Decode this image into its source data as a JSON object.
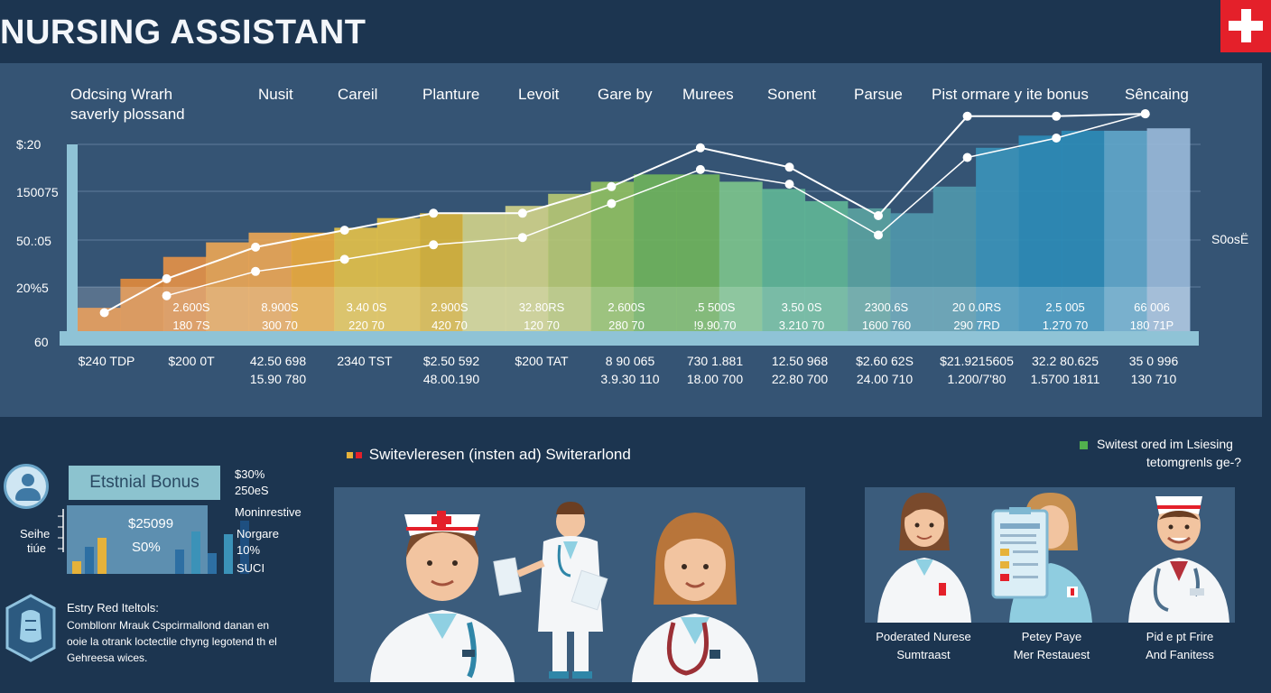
{
  "header": {
    "title": "NURSING ASSISTANT"
  },
  "colors": {
    "background": "#1c3550",
    "panel": "#355474",
    "flag_red": "#e4202a",
    "bar_colors": [
      "#e08a3c",
      "#e39148",
      "#e9a656",
      "#eaaa3e",
      "#e2c04a",
      "#d8b43c",
      "#cfd18a",
      "#b6c874",
      "#8fbf62",
      "#6fb35c",
      "#7cc38c",
      "#5fb596",
      "#5aa2a0",
      "#4f97ab",
      "#3b92b8",
      "#2d8bb6",
      "#5fa6c9",
      "#98b8d8"
    ]
  },
  "chart_data": {
    "type": "bar",
    "categories_header": [
      "Odcsing Wrarh",
      "Nusit",
      "Careil",
      "Planture",
      "Levoit",
      "Gare by",
      "Murees",
      "Sonent",
      "Parsue",
      "Pist ormare y ite bonus",
      "Sêncaing"
    ],
    "subheader": "saverly plossand",
    "y_tick_labels": [
      "$:20",
      "150075",
      "50.:05",
      "20%5",
      "60"
    ],
    "right_label": "S0osË",
    "values": [
      0.5,
      1.1,
      1.55,
      1.85,
      2.05,
      2.05,
      2.15,
      2.35,
      2.45,
      2.45,
      2.6,
      2.85,
      3.1,
      3.25,
      3.25,
      3.1,
      2.95,
      2.7,
      2.55,
      2.45,
      3.0,
      3.8,
      4.05,
      4.15,
      4.15,
      4.2
    ],
    "line_upper": [
      {
        "x": 0.3,
        "y": 0.4
      },
      {
        "x": 1.0,
        "y": 1.1
      },
      {
        "x": 2.0,
        "y": 1.75
      },
      {
        "x": 3.0,
        "y": 2.1
      },
      {
        "x": 4.0,
        "y": 2.45
      },
      {
        "x": 5.0,
        "y": 2.45
      },
      {
        "x": 6.0,
        "y": 3.0
      },
      {
        "x": 7.0,
        "y": 3.8
      },
      {
        "x": 8.0,
        "y": 3.4
      },
      {
        "x": 9.0,
        "y": 2.4
      },
      {
        "x": 10.0,
        "y": 4.45
      },
      {
        "x": 11.0,
        "y": 4.45
      },
      {
        "x": 12.0,
        "y": 4.5
      }
    ],
    "line_lower": [
      {
        "x": 1.0,
        "y": 0.75
      },
      {
        "x": 2.0,
        "y": 1.25
      },
      {
        "x": 3.0,
        "y": 1.5
      },
      {
        "x": 4.0,
        "y": 1.8
      },
      {
        "x": 5.0,
        "y": 1.95
      },
      {
        "x": 6.0,
        "y": 2.65
      },
      {
        "x": 7.0,
        "y": 3.35
      },
      {
        "x": 8.0,
        "y": 3.05
      },
      {
        "x": 9.0,
        "y": 2.0
      },
      {
        "x": 10.0,
        "y": 3.6
      },
      {
        "x": 11.0,
        "y": 4.0
      },
      {
        "x": 12.0,
        "y": 4.5
      }
    ],
    "bar_labels": [
      [
        "2.600S",
        "180 7S"
      ],
      [
        "8.900S",
        "300 70"
      ],
      [
        "3.40 0S",
        "220 70"
      ],
      [
        "2.900S",
        "420 70"
      ],
      [
        "32.80RS",
        "120 70"
      ],
      [
        "2.600S",
        "280 70"
      ],
      [
        ".5 500S",
        "!9.90.70"
      ],
      [
        "3.50 0S",
        "3.210 70"
      ],
      [
        "2300.6S",
        "1600 760"
      ],
      [
        "20 0.0RS",
        "290 7RD"
      ],
      [
        "2.5 005",
        "1.270 70"
      ],
      [
        "66 006",
        "180 71P"
      ]
    ],
    "base_labels": [
      [
        "$240 TDP",
        ""
      ],
      [
        "$200 0T",
        ""
      ],
      [
        "42.50 698",
        "15.90 780"
      ],
      [
        "2340 TST",
        ""
      ],
      [
        "$2.50 592",
        "48.00.190"
      ],
      [
        "$200 TAT",
        ""
      ],
      [
        "8 90 065",
        "3.9.30 110"
      ],
      [
        "730 1.881",
        "18.00 700"
      ],
      [
        "12.50 968",
        "22.80 700"
      ],
      [
        "$2.60 62S",
        "24.00 710"
      ],
      [
        "$21.9215605",
        "1.200/7'80"
      ],
      [
        "32.2 80.625",
        "1.5700 1811"
      ],
      [
        "35 0 996",
        "130 710"
      ]
    ]
  },
  "bonus_section": {
    "label": "Etstnial Bonus",
    "pct_top": "$30%",
    "pct_top2": "250eS",
    "side_label_1": "Seihe",
    "side_label_2": "tiúe",
    "mini_value": "$25099",
    "mini_pct": "S0%",
    "right_1": "Moninrestive",
    "right_2": "Norgare",
    "right_3": "10%",
    "right_4": "SUCI",
    "mini_bars": [
      0.18,
      0.4,
      0.52,
      0.36,
      0.62,
      0.3,
      0.58,
      0.78
    ]
  },
  "entry": {
    "heading": "Estry Red Iteltols:",
    "body": "Combllonr Mrauk Cspcirmallond danan en ooie la otrank loctectile chyng legotend th el Gehreesa wices."
  },
  "center": {
    "legend_text": "Switevleresen (insten ad) Switerarlond"
  },
  "right": {
    "legend_line1": "Switest ored im Lsiesing",
    "legend_line2": "tetomgrenls ge-?",
    "captions": [
      [
        "Poderated Nurese",
        "Sumtraast"
      ],
      [
        "Petey Paye",
        "Mer Restauest"
      ],
      [
        "Pid e pt Frire",
        "And Fanitess"
      ]
    ]
  }
}
